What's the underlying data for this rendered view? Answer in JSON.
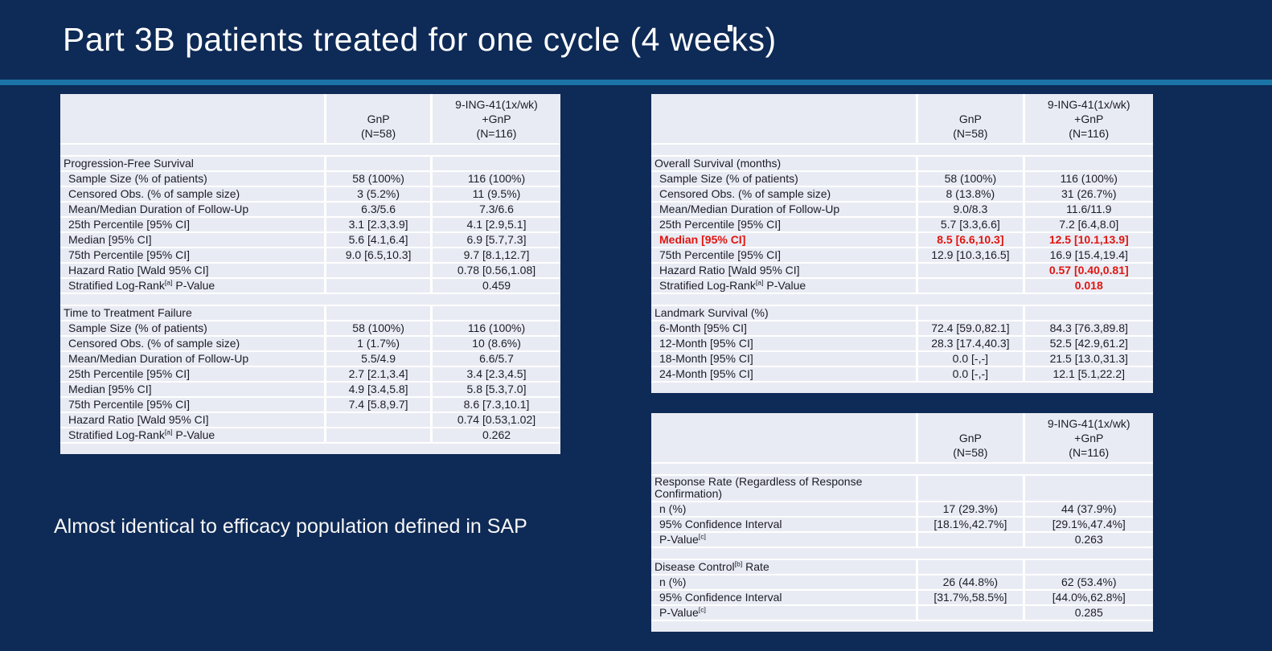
{
  "slide": {
    "title": "Part 3B patients treated for one cycle (4 weeks)",
    "footnote": "Almost identical to efficacy population defined in SAP"
  },
  "colors": {
    "background": "#0e2a56",
    "accent_line": "#1b74a6",
    "table_cell_bg": "#e9ebf4",
    "table_text": "#1c1c26",
    "highlight_red": "#e0150f",
    "title_text": "#ffffff"
  },
  "column_headers": {
    "label_column": "",
    "gnp_lines": [
      "GnP",
      "(N=58)"
    ],
    "combo_lines": [
      "9-ING-41(1x/wk)",
      "+GnP",
      "(N=116)"
    ]
  },
  "tables": [
    {
      "name": "pfs-ttf-table",
      "sections": [
        {
          "title": "Progression-Free Survival",
          "rows": [
            {
              "label": "Sample Size (% of patients)",
              "gnp": "58 (100%)",
              "combo": "116 (100%)"
            },
            {
              "label": "Censored Obs. (% of sample size)",
              "gnp": "3 (5.2%)",
              "combo": "11 (9.5%)"
            },
            {
              "label": "Mean/Median Duration of Follow-Up",
              "gnp": "6.3/5.6",
              "combo": "7.3/6.6"
            },
            {
              "label": "25th Percentile [95% CI]",
              "gnp": "3.1 [2.3,3.9]",
              "combo": "4.1 [2.9,5.1]"
            },
            {
              "label": "Median [95% CI]",
              "gnp": "5.6 [4.1,6.4]",
              "combo": "6.9 [5.7,7.3]"
            },
            {
              "label": "75th Percentile [95% CI]",
              "gnp": "9.0 [6.5,10.3]",
              "combo": "9.7 [8.1,12.7]"
            },
            {
              "label": "Hazard Ratio [Wald 95% CI]",
              "gnp": "",
              "combo": "0.78 [0.56,1.08]"
            },
            {
              "label": "Stratified Log-Rank[a] P-Value",
              "gnp": "",
              "combo": "0.459"
            }
          ]
        },
        {
          "title": "Time to Treatment Failure",
          "rows": [
            {
              "label": "Sample Size (% of patients)",
              "gnp": "58 (100%)",
              "combo": "116 (100%)"
            },
            {
              "label": "Censored Obs. (% of sample size)",
              "gnp": "1 (1.7%)",
              "combo": "10 (8.6%)"
            },
            {
              "label": "Mean/Median Duration of Follow-Up",
              "gnp": "5.5/4.9",
              "combo": "6.6/5.7"
            },
            {
              "label": "25th Percentile [95% CI]",
              "gnp": "2.7 [2.1,3.4]",
              "combo": "3.4 [2.3,4.5]"
            },
            {
              "label": "Median [95% CI]",
              "gnp": "4.9 [3.4,5.8]",
              "combo": "5.8 [5.3,7.0]"
            },
            {
              "label": "75th Percentile [95% CI]",
              "gnp": "7.4 [5.8,9.7]",
              "combo": "8.6 [7.3,10.1]"
            },
            {
              "label": "Hazard Ratio [Wald 95% CI]",
              "gnp": "",
              "combo": "0.74 [0.53,1.02]"
            },
            {
              "label": "Stratified Log-Rank[a] P-Value",
              "gnp": "",
              "combo": "0.262"
            }
          ]
        }
      ]
    },
    {
      "name": "os-landmark-table",
      "sections": [
        {
          "title": "Overall Survival (months)",
          "rows": [
            {
              "label": "Sample Size (% of patients)",
              "gnp": "58 (100%)",
              "combo": "116 (100%)"
            },
            {
              "label": "Censored Obs. (% of sample size)",
              "gnp": "8 (13.8%)",
              "combo": "31 (26.7%)"
            },
            {
              "label": "Mean/Median Duration of Follow-Up",
              "gnp": "9.0/8.3",
              "combo": "11.6/11.9"
            },
            {
              "label": "25th Percentile [95% CI]",
              "gnp": "5.7 [3.3,6.6]",
              "combo": "7.2 [6.4,8.0]"
            },
            {
              "label": "Median [95% CI]",
              "gnp": "8.5 [6.6,10.3]",
              "combo": "12.5 [10.1,13.9]",
              "red": [
                "label",
                "gnp",
                "combo"
              ]
            },
            {
              "label": "75th Percentile [95% CI]",
              "gnp": "12.9 [10.3,16.5]",
              "combo": "16.9 [15.4,19.4]"
            },
            {
              "label": "Hazard Ratio [Wald 95% CI]",
              "gnp": "",
              "combo": "0.57 [0.40,0.81]",
              "red": [
                "combo"
              ]
            },
            {
              "label": "Stratified Log-Rank[a] P-Value",
              "gnp": "",
              "combo": "0.018",
              "red": [
                "combo"
              ]
            }
          ]
        },
        {
          "title": "Landmark Survival (%)",
          "rows": [
            {
              "label": "6-Month [95% CI]",
              "gnp": "72.4 [59.0,82.1]",
              "combo": "84.3 [76.3,89.8]"
            },
            {
              "label": "12-Month [95% CI]",
              "gnp": "28.3 [17.4,40.3]",
              "combo": "52.5 [42.9,61.2]"
            },
            {
              "label": "18-Month [95% CI]",
              "gnp": "0.0 [-,-]",
              "combo": "21.5 [13.0,31.3]"
            },
            {
              "label": "24-Month [95% CI]",
              "gnp": "0.0 [-,-]",
              "combo": "12.1 [5.1,22.2]"
            }
          ]
        }
      ]
    },
    {
      "name": "response-rate-table",
      "sections": [
        {
          "title": "Response Rate (Regardless of Response Confirmation)",
          "rows": [
            {
              "label": "n (%)",
              "gnp": "17 (29.3%)",
              "combo": "44 (37.9%)"
            },
            {
              "label": "95% Confidence Interval",
              "gnp": "[18.1%,42.7%]",
              "combo": "[29.1%,47.4%]"
            },
            {
              "label": "P-Value[c]",
              "gnp": "",
              "combo": "0.263"
            }
          ]
        },
        {
          "title": "Disease Control[b] Rate",
          "rows": [
            {
              "label": "n (%)",
              "gnp": "26 (44.8%)",
              "combo": "62 (53.4%)"
            },
            {
              "label": "95% Confidence Interval",
              "gnp": "[31.7%,58.5%]",
              "combo": "[44.0%,62.8%]"
            },
            {
              "label": "P-Value[c]",
              "gnp": "",
              "combo": "0.285"
            }
          ]
        }
      ]
    }
  ]
}
